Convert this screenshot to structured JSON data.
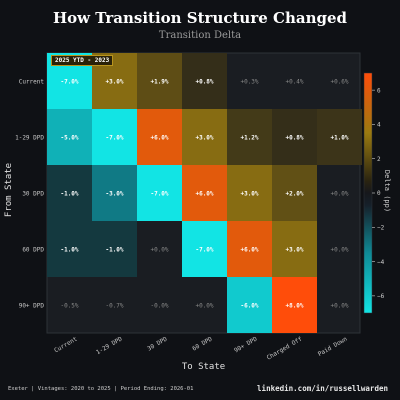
{
  "header": {
    "title": "How Transition Structure Changed",
    "subtitle": "Transition Delta",
    "badge": "2025 YTD - 2023"
  },
  "footer": {
    "left": "Exeter | Vintages: 2020 to 2025 | Period Ending: 2026-01",
    "right": "linkedin.com/in/russellwarden"
  },
  "colors": {
    "background": "#0f1115",
    "panel": "#1a1d22",
    "neutral": "#16181c",
    "positive": "#ff4d0a",
    "positive_mid": "#9a7a10",
    "negative": "#12e4e4",
    "negative_mid": "#0f8a96",
    "small_positive_text": "#ffffff",
    "faint_text": "#8a8a8a"
  },
  "chart_data": {
    "type": "heatmap",
    "title": "How Transition Structure Changed",
    "subtitle": "Transition Delta",
    "xlabel": "To State",
    "ylabel": "From State",
    "x_categories": [
      "Current",
      "1-29 DPD",
      "30 DPD",
      "60 DPD",
      "90+ DPD",
      "Charged Off",
      "Paid Down"
    ],
    "y_categories": [
      "Current",
      "1-29 DPD",
      "30 DPD",
      "60 DPD",
      "90+ DPD"
    ],
    "values": [
      [
        -7.0,
        3.0,
        1.9,
        0.8,
        0.3,
        0.4,
        0.6
      ],
      [
        -5.0,
        -7.0,
        6.0,
        3.0,
        1.2,
        0.8,
        1.0
      ],
      [
        -1.0,
        -3.0,
        -7.0,
        6.0,
        3.0,
        2.0,
        0.0
      ],
      [
        -1.0,
        -1.0,
        0.0,
        -7.0,
        6.0,
        3.0,
        0.0
      ],
      [
        -0.5,
        -0.7,
        0.0,
        0.0,
        -6.0,
        8.0,
        0.0
      ]
    ],
    "cell_labels": [
      [
        "-7.0%",
        "+3.0%",
        "+1.9%",
        "+0.8%",
        "+0.3%",
        "+0.4%",
        "+0.6%"
      ],
      [
        "-5.0%",
        "-7.0%",
        "+6.0%",
        "+3.0%",
        "+1.2%",
        "+0.8%",
        "+1.0%"
      ],
      [
        "-1.0%",
        "-3.0%",
        "-7.0%",
        "+6.0%",
        "+3.0%",
        "+2.0%",
        "+0.0%"
      ],
      [
        "-1.0%",
        "-1.0%",
        "+0.0%",
        "-7.0%",
        "+6.0%",
        "+3.0%",
        "+0.0%"
      ],
      [
        "-0.5%",
        "-0.7%",
        "-0.0%",
        "+0.0%",
        "-6.0%",
        "+8.0%",
        "+0.0%"
      ]
    ],
    "colorbar": {
      "label": "Delta (pp)",
      "range": [
        -7,
        7
      ],
      "ticks": [
        6,
        4,
        2,
        0,
        -2,
        -4,
        -6
      ],
      "tick_labels": [
        "6",
        "4",
        "2",
        "0",
        "−2",
        "−4",
        "−6"
      ]
    },
    "grid": false
  }
}
